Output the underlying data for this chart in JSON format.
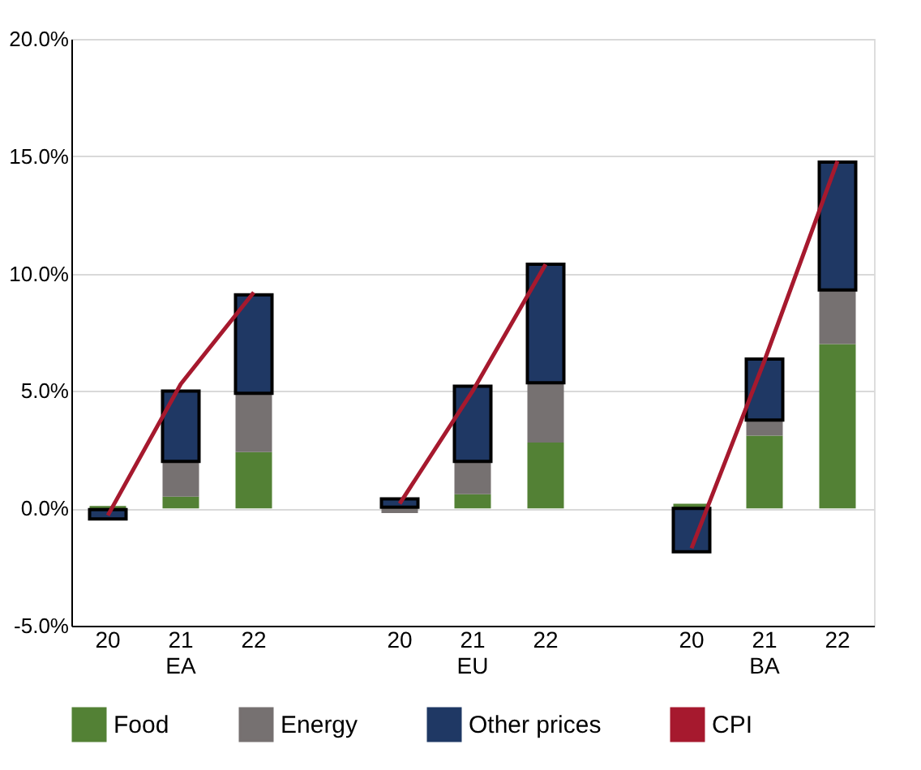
{
  "chart_data": {
    "type": "bar",
    "stacked": true,
    "categories": [
      "20",
      "21\nEA",
      "22",
      null,
      "20",
      "21\nEU",
      "22",
      null,
      "20",
      "21\nBA",
      "22"
    ],
    "series": [
      {
        "name": "Food",
        "color": "#538135",
        "values": [
          0.1,
          0.5,
          2.4,
          null,
          0.05,
          0.6,
          2.8,
          null,
          0.2,
          3.1,
          7.0
        ]
      },
      {
        "name": "Energy",
        "color": "#767171",
        "values": [
          -0.05,
          1.5,
          2.5,
          null,
          -0.2,
          1.4,
          2.55,
          null,
          0.0,
          0.66,
          2.3
        ]
      },
      {
        "name": "Other prices",
        "color": "#1f3864",
        "values": [
          -0.4,
          3.0,
          4.2,
          null,
          0.35,
          3.2,
          5.05,
          null,
          -1.85,
          2.6,
          5.45
        ]
      },
      {
        "name": "CPI",
        "type": "line",
        "color": "#a6192e",
        "values": [
          -0.3,
          5.3,
          9.2,
          null,
          0.2,
          5.0,
          10.4,
          null,
          -1.7,
          6.3,
          14.8
        ]
      }
    ],
    "ylim": [
      -5,
      20
    ],
    "yticks": [
      {
        "value": -5,
        "label": "-5.0%"
      },
      {
        "value": 0,
        "label": "0.0%"
      },
      {
        "value": 5,
        "label": "5.0%"
      },
      {
        "value": 10,
        "label": "10.0%"
      },
      {
        "value": 15,
        "label": "15.0%"
      },
      {
        "value": 20,
        "label": "20.0%"
      }
    ],
    "grid": "y",
    "legend": "bottom"
  }
}
